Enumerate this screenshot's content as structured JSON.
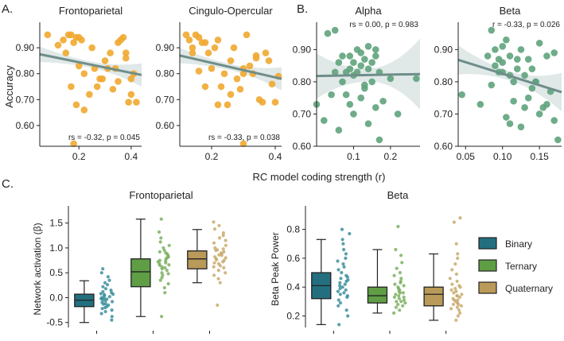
{
  "panel_labels": [
    "A.",
    "B.",
    "C."
  ],
  "colors": {
    "orange": "#F0A830",
    "green_dot": "#5FA37C",
    "fit_line": "#6E8E8A",
    "ci_band": "#DDE6E6",
    "binary": "#236F7F",
    "ternary": "#5F9E45",
    "quaternary": "#B99A58",
    "binary_dot": "#3C8F9E",
    "ternary_dot": "#7DB162",
    "quaternary_dot": "#C9AC6E"
  },
  "shared_xlabel": "RC model coding strength (r)",
  "chart_data": [
    {
      "type": "scatter",
      "id": "frontoparietal",
      "title": "Frontoparietal",
      "ylabel": "Accuracy",
      "xlim": [
        0.05,
        0.44
      ],
      "ylim": [
        0.52,
        0.98
      ],
      "xticks": [
        0.2,
        0.4
      ],
      "yticks": [
        0.6,
        0.7,
        0.8,
        0.9
      ],
      "stat": "rs = -0.32, p = 0.045",
      "fit": [
        [
          0.05,
          0.875
        ],
        [
          0.44,
          0.795
        ]
      ],
      "ci": [
        0.03,
        0.012,
        0.045
      ],
      "x": [
        0.08,
        0.12,
        0.14,
        0.15,
        0.16,
        0.17,
        0.18,
        0.19,
        0.2,
        0.21,
        0.22,
        0.25,
        0.27,
        0.29,
        0.3,
        0.31,
        0.32,
        0.34,
        0.35,
        0.36,
        0.37,
        0.38,
        0.39,
        0.4,
        0.41,
        0.42,
        0.17,
        0.2,
        0.24,
        0.28,
        0.33,
        0.38,
        0.22,
        0.26,
        0.19,
        0.35,
        0.4,
        0.18
      ],
      "y": [
        0.95,
        0.91,
        0.93,
        0.88,
        0.95,
        0.95,
        0.92,
        0.94,
        0.94,
        0.93,
        0.8,
        0.9,
        0.75,
        0.78,
        0.85,
        0.82,
        0.88,
        0.82,
        0.92,
        0.93,
        0.94,
        0.86,
        0.69,
        0.78,
        0.8,
        0.69,
        0.75,
        0.83,
        0.72,
        0.78,
        0.74,
        0.88,
        0.66,
        0.82,
        0.68,
        0.77,
        0.72,
        0.53
      ]
    },
    {
      "type": "scatter",
      "id": "cingulo-opercular",
      "title": "Cingulo-Opercular",
      "ylabel": "",
      "xlim": [
        0.1,
        0.42
      ],
      "ylim": [
        0.52,
        0.98
      ],
      "xticks": [
        0.2,
        0.4
      ],
      "yticks": [
        0.6,
        0.7,
        0.8,
        0.9
      ],
      "stat": "rs = -0.33, p = 0.038",
      "fit": [
        [
          0.1,
          0.87
        ],
        [
          0.42,
          0.78
        ]
      ],
      "ci": [
        0.03,
        0.012,
        0.045
      ],
      "x": [
        0.12,
        0.13,
        0.14,
        0.15,
        0.16,
        0.17,
        0.18,
        0.19,
        0.2,
        0.21,
        0.22,
        0.23,
        0.24,
        0.25,
        0.26,
        0.27,
        0.28,
        0.29,
        0.3,
        0.31,
        0.32,
        0.33,
        0.34,
        0.35,
        0.36,
        0.37,
        0.38,
        0.39,
        0.4,
        0.41,
        0.14,
        0.18,
        0.22,
        0.26,
        0.3,
        0.34,
        0.16,
        0.3
      ],
      "y": [
        0.95,
        0.93,
        0.9,
        0.95,
        0.94,
        0.92,
        0.92,
        0.88,
        0.82,
        0.9,
        0.93,
        0.75,
        0.8,
        0.68,
        0.85,
        0.9,
        0.78,
        0.74,
        0.82,
        0.95,
        0.83,
        0.8,
        0.87,
        0.7,
        0.69,
        0.88,
        0.85,
        0.76,
        0.69,
        0.79,
        0.88,
        0.75,
        0.68,
        0.72,
        0.8,
        0.86,
        0.81,
        0.53
      ]
    },
    {
      "type": "scatter",
      "id": "alpha",
      "title": "Alpha",
      "ylabel": "",
      "xlim": [
        0.0,
        0.28
      ],
      "ylim": [
        0.6,
        0.97
      ],
      "xticks": [
        0.1,
        0.2
      ],
      "yticks": [
        0.6,
        0.7,
        0.8,
        0.9
      ],
      "stat": "rs = 0.00, p = 0.983",
      "fit": [
        [
          0.0,
          0.818
        ],
        [
          0.28,
          0.824
        ]
      ],
      "ci": [
        0.07,
        0.02,
        0.11
      ],
      "x": [
        0.0,
        0.02,
        0.03,
        0.05,
        0.06,
        0.07,
        0.07,
        0.08,
        0.08,
        0.09,
        0.09,
        0.1,
        0.1,
        0.11,
        0.11,
        0.12,
        0.12,
        0.13,
        0.13,
        0.14,
        0.14,
        0.15,
        0.15,
        0.16,
        0.16,
        0.17,
        0.17,
        0.18,
        0.2,
        0.22,
        0.27,
        0.04,
        0.06,
        0.1,
        0.12,
        0.14,
        0.05,
        0.09,
        0.13,
        0.16
      ],
      "y": [
        0.73,
        0.68,
        0.95,
        0.96,
        0.86,
        0.88,
        0.8,
        0.83,
        0.76,
        0.84,
        0.88,
        0.82,
        0.86,
        0.9,
        0.83,
        0.89,
        0.85,
        0.87,
        0.78,
        0.84,
        0.91,
        0.86,
        0.8,
        0.88,
        0.9,
        0.83,
        0.62,
        0.74,
        0.81,
        0.7,
        0.81,
        0.76,
        0.65,
        0.7,
        0.75,
        0.67,
        0.83,
        0.73,
        0.79,
        0.72
      ]
    },
    {
      "type": "scatter",
      "id": "beta",
      "title": "Beta",
      "ylabel": "",
      "xlim": [
        0.04,
        0.18
      ],
      "ylim": [
        0.6,
        0.97
      ],
      "xticks": [
        0.05,
        0.1,
        0.15
      ],
      "yticks": [
        0.6,
        0.7,
        0.8,
        0.9
      ],
      "stat": "r = -0.33, p = 0.026",
      "fit": [
        [
          0.04,
          0.868
        ],
        [
          0.18,
          0.768
        ]
      ],
      "ci": [
        0.045,
        0.014,
        0.06
      ],
      "x": [
        0.045,
        0.07,
        0.08,
        0.085,
        0.09,
        0.09,
        0.095,
        0.1,
        0.1,
        0.1,
        0.105,
        0.11,
        0.11,
        0.115,
        0.12,
        0.12,
        0.125,
        0.13,
        0.13,
        0.135,
        0.14,
        0.14,
        0.145,
        0.15,
        0.15,
        0.16,
        0.16,
        0.17,
        0.17,
        0.175,
        0.085,
        0.095,
        0.105,
        0.115,
        0.125,
        0.135,
        0.145,
        0.155,
        0.165,
        0.11
      ],
      "y": [
        0.76,
        0.73,
        0.88,
        0.96,
        0.9,
        0.85,
        0.87,
        0.91,
        0.83,
        0.86,
        0.93,
        0.88,
        0.82,
        0.8,
        0.87,
        0.84,
        0.9,
        0.72,
        0.82,
        0.87,
        0.78,
        0.84,
        0.8,
        0.92,
        0.7,
        0.88,
        0.73,
        0.89,
        0.68,
        0.62,
        0.79,
        0.83,
        0.69,
        0.74,
        0.66,
        0.75,
        0.8,
        0.72,
        0.77,
        0.67
      ]
    },
    {
      "type": "box",
      "id": "frontoparietal-box",
      "title": "Frontoparietal",
      "ylabel": "Network activation (β)",
      "ylim": [
        -0.6,
        1.75
      ],
      "yticks": [
        -0.5,
        0.0,
        0.5,
        1.0,
        1.5
      ],
      "categories": [
        "Binary",
        "Ternary",
        "Quaternary"
      ],
      "boxes": [
        {
          "name": "Binary",
          "whislo": -0.5,
          "q1": -0.18,
          "med": -0.05,
          "q3": 0.07,
          "whishi": 0.34
        },
        {
          "name": "Ternary",
          "whislo": -0.38,
          "q1": 0.22,
          "med": 0.52,
          "q3": 0.78,
          "whishi": 1.58
        },
        {
          "name": "Quaternary",
          "whislo": 0.3,
          "q1": 0.58,
          "med": 0.78,
          "q3": 0.94,
          "whishi": 1.37
        }
      ],
      "points": [
        [
          -0.45,
          -0.38,
          -0.32,
          -0.28,
          -0.25,
          -0.22,
          -0.2,
          -0.18,
          -0.15,
          -0.13,
          -0.1,
          -0.08,
          -0.06,
          -0.05,
          -0.03,
          -0.01,
          0.0,
          0.02,
          0.04,
          0.06,
          0.08,
          0.1,
          0.12,
          0.15,
          0.18,
          0.22,
          0.26,
          0.3,
          0.35,
          0.42,
          0.5,
          0.58,
          -0.12,
          -0.02,
          0.07
        ],
        [
          -0.38,
          0.1,
          0.2,
          0.28,
          0.35,
          0.4,
          0.45,
          0.5,
          0.55,
          0.58,
          0.62,
          0.65,
          0.68,
          0.7,
          0.72,
          0.75,
          0.78,
          0.8,
          0.82,
          0.85,
          0.88,
          0.9,
          0.95,
          1.0,
          1.05,
          1.12,
          1.2,
          1.32,
          1.58,
          0.6,
          0.74,
          0.92,
          0.48,
          0.66
        ],
        [
          -0.15,
          0.3,
          0.38,
          0.45,
          0.5,
          0.55,
          0.6,
          0.64,
          0.68,
          0.7,
          0.72,
          0.75,
          0.78,
          0.8,
          0.82,
          0.85,
          0.88,
          0.9,
          0.92,
          0.95,
          0.98,
          1.0,
          1.05,
          1.1,
          1.15,
          1.2,
          1.25,
          1.3,
          1.38,
          1.45,
          1.52,
          0.76,
          0.86,
          0.62,
          0.96
        ]
      ]
    },
    {
      "type": "box",
      "id": "beta-box",
      "title": "Beta",
      "ylabel": "Beta Peak Power",
      "ylim": [
        0.12,
        0.93
      ],
      "yticks": [
        0.2,
        0.4,
        0.6,
        0.8
      ],
      "categories": [
        "Binary",
        "Ternary",
        "Quaternary"
      ],
      "boxes": [
        {
          "name": "Binary",
          "whislo": 0.14,
          "q1": 0.32,
          "med": 0.41,
          "q3": 0.5,
          "whishi": 0.73
        },
        {
          "name": "Ternary",
          "whislo": 0.22,
          "q1": 0.29,
          "med": 0.34,
          "q3": 0.4,
          "whishi": 0.66
        },
        {
          "name": "Quaternary",
          "whislo": 0.17,
          "q1": 0.27,
          "med": 0.35,
          "q3": 0.4,
          "whishi": 0.63
        }
      ],
      "points": [
        [
          0.14,
          0.2,
          0.24,
          0.27,
          0.29,
          0.31,
          0.33,
          0.35,
          0.36,
          0.38,
          0.39,
          0.4,
          0.41,
          0.42,
          0.43,
          0.44,
          0.45,
          0.46,
          0.48,
          0.5,
          0.52,
          0.54,
          0.56,
          0.58,
          0.6,
          0.63,
          0.66,
          0.7,
          0.73,
          0.77,
          0.8,
          0.37,
          0.47,
          0.34
        ],
        [
          0.22,
          0.24,
          0.26,
          0.27,
          0.28,
          0.29,
          0.3,
          0.31,
          0.32,
          0.33,
          0.34,
          0.35,
          0.36,
          0.37,
          0.38,
          0.39,
          0.4,
          0.41,
          0.42,
          0.44,
          0.46,
          0.48,
          0.5,
          0.53,
          0.57,
          0.62,
          0.66,
          0.82,
          0.3,
          0.36,
          0.43,
          0.33
        ],
        [
          0.17,
          0.2,
          0.22,
          0.24,
          0.25,
          0.26,
          0.27,
          0.28,
          0.29,
          0.3,
          0.31,
          0.32,
          0.33,
          0.34,
          0.35,
          0.36,
          0.37,
          0.38,
          0.39,
          0.4,
          0.42,
          0.44,
          0.46,
          0.49,
          0.52,
          0.56,
          0.6,
          0.63,
          0.7,
          0.88,
          0.85,
          0.28,
          0.34,
          0.41,
          0.31
        ]
      ],
      "legend": [
        "Binary",
        "Ternary",
        "Quaternary"
      ]
    }
  ]
}
